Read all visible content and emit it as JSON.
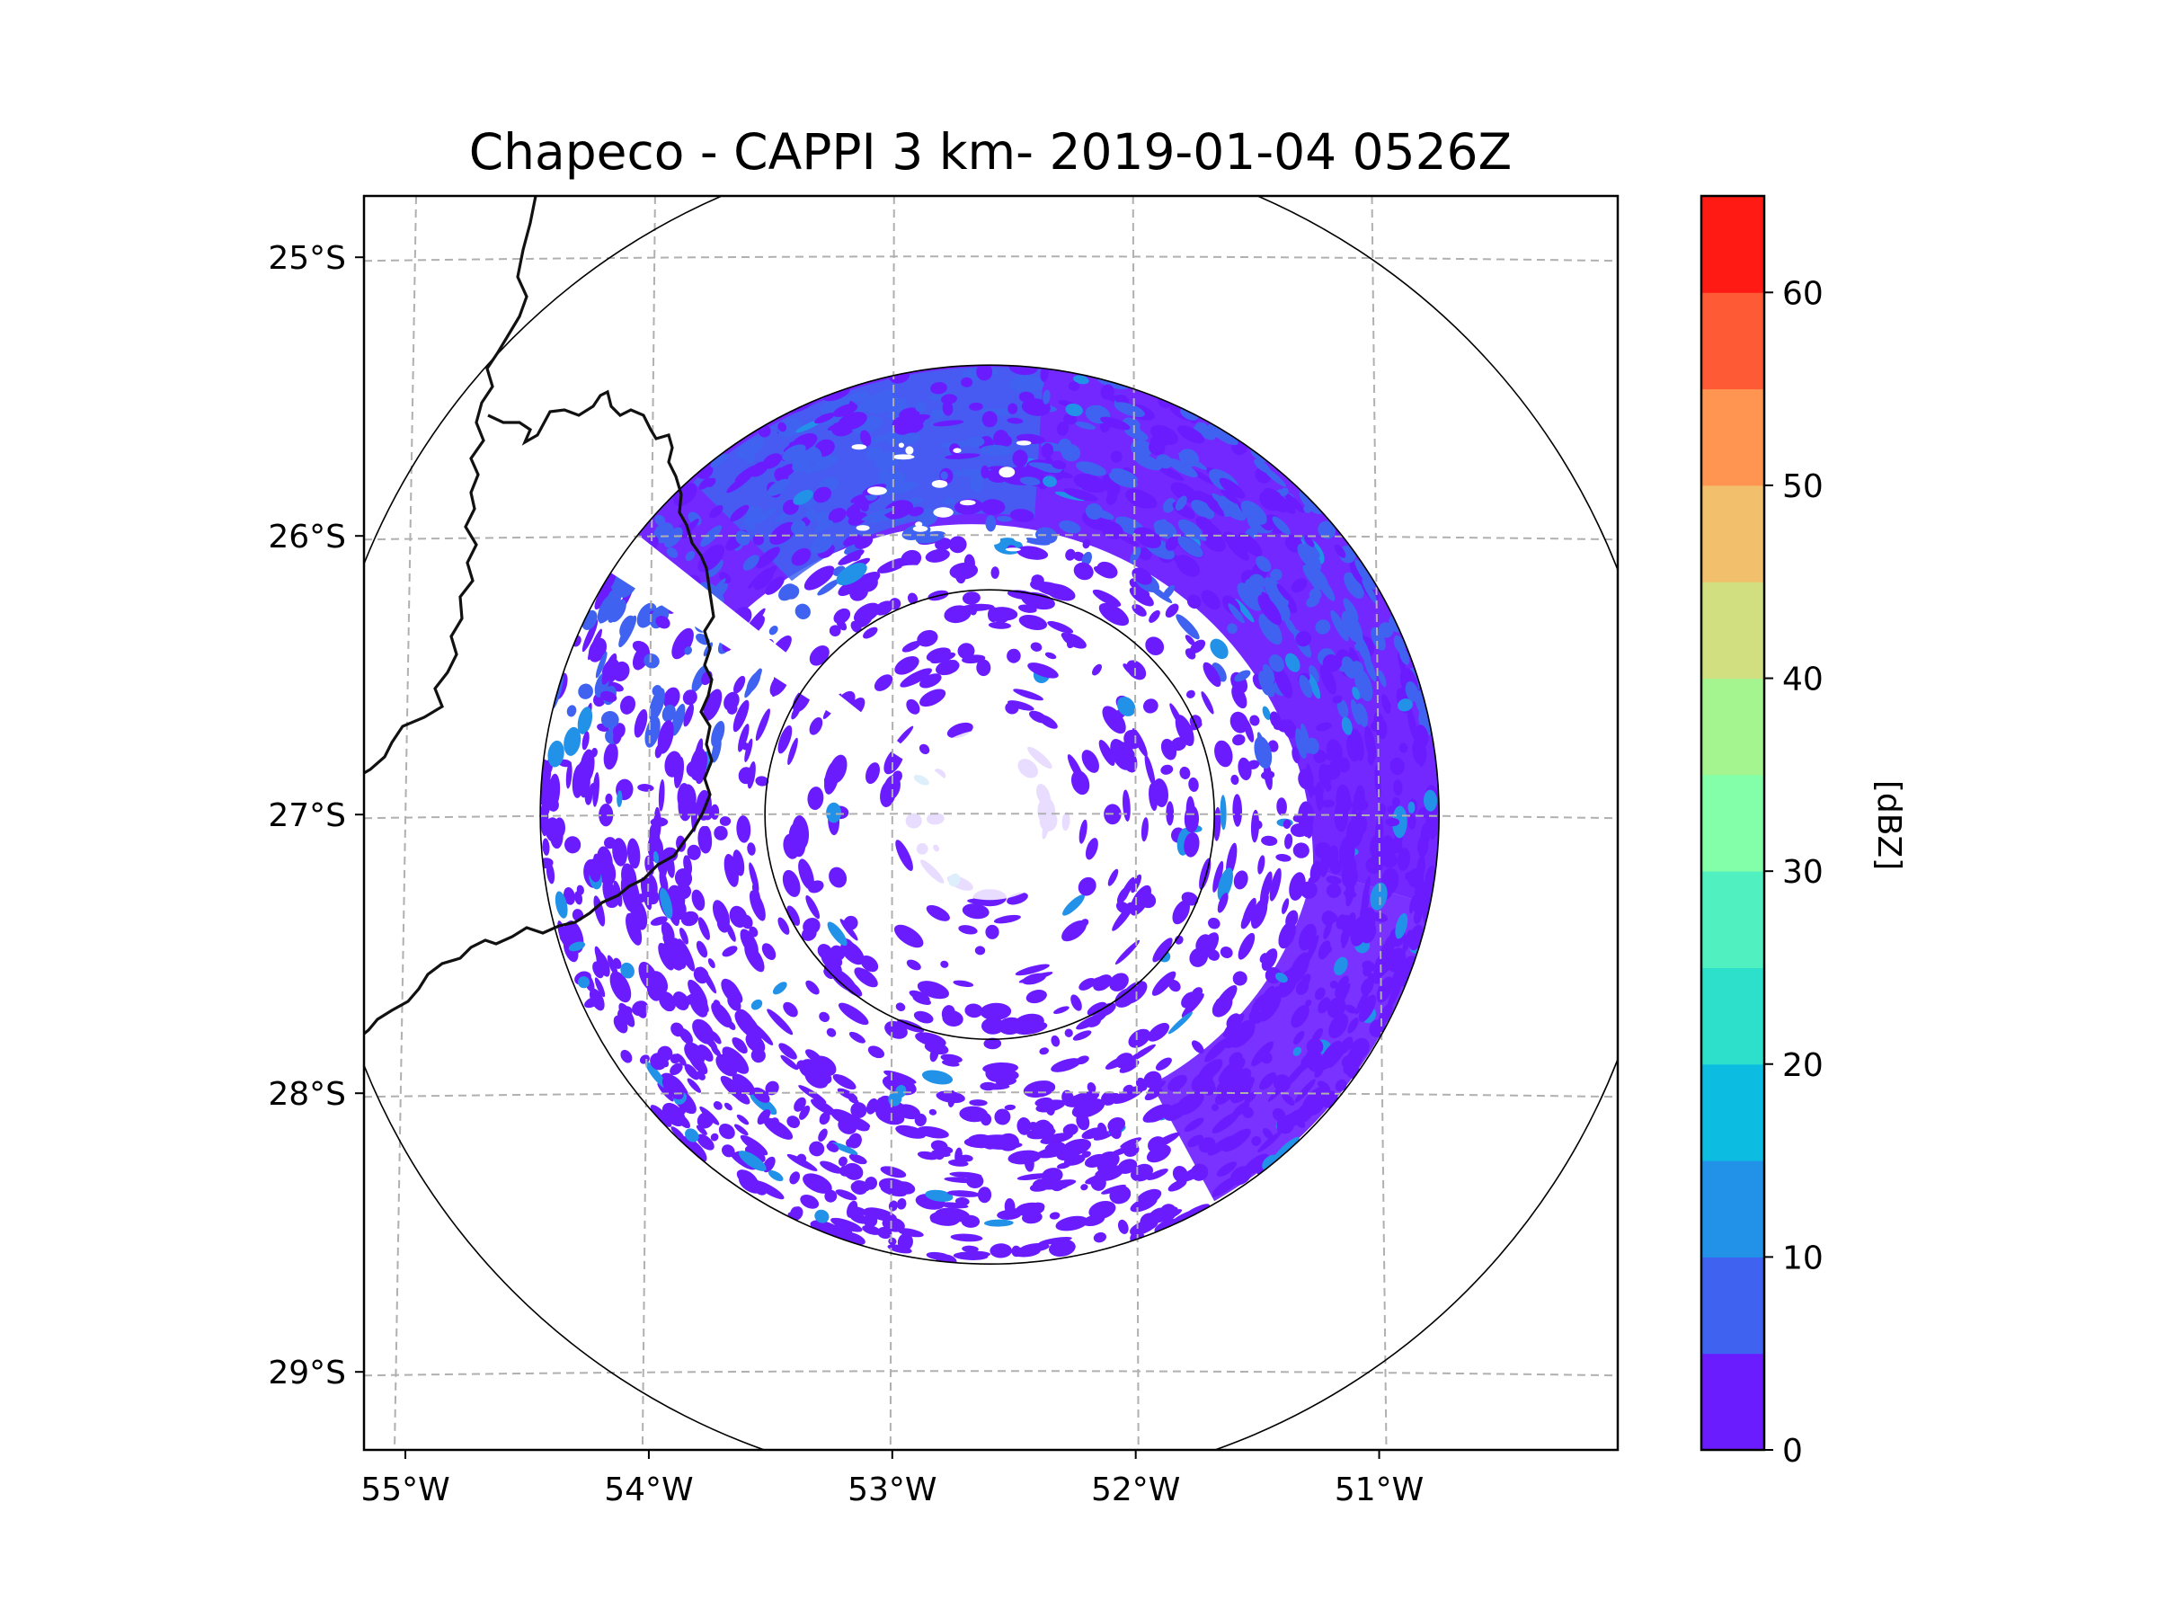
{
  "chart_data": {
    "type": "heatmap",
    "title": "Chapeco - CAPPI 3 km- 2019-01-04 0526Z",
    "xlabel": "",
    "ylabel": "",
    "x_tick_labels": [
      "55°W",
      "54°W",
      "53°W",
      "52°W",
      "51°W"
    ],
    "y_tick_labels": [
      "25°S",
      "26°S",
      "27°S",
      "28°S",
      "29°S"
    ],
    "x_ticks": [
      -55,
      -54,
      -53,
      -52,
      -51
    ],
    "y_ticks": [
      -25,
      -26,
      -27,
      -28,
      -29
    ],
    "xlim": [
      -55.17,
      -50.02
    ],
    "ylim": [
      -29.28,
      -24.78
    ],
    "grid": true,
    "radar_center": {
      "lon": -52.6,
      "lat": -27.0
    },
    "range_rings_km": [
      100,
      200,
      300
    ],
    "colorbar": {
      "label": "[dBZ]",
      "ticks": [
        0,
        10,
        20,
        30,
        40,
        50,
        60
      ],
      "tick_labels": [
        "0",
        "10",
        "20",
        "30",
        "40",
        "50",
        "60"
      ],
      "range": [
        0,
        65
      ],
      "bounds": [
        0,
        5,
        10,
        15,
        20,
        25,
        30,
        35,
        40,
        45,
        50,
        55,
        60,
        65
      ],
      "colors": [
        "#6a1cff",
        "#3f63f0",
        "#2192e8",
        "#0dbde1",
        "#2de0cc",
        "#50f0c0",
        "#82ffa8",
        "#a4f590",
        "#d1df80",
        "#f2c06c",
        "#ff9550",
        "#ff5a36",
        "#ff1a14"
      ]
    },
    "field_summary": "Reflectivity mostly 0-10 dBZ within 200 km radius; 5-10 dBZ dominant in northern sector; speckled 0-5 dBZ echoes in southern and western sectors; sparse near radar"
  },
  "colors": {
    "axes": "#000000",
    "grid": "#b0b0b0",
    "border": "#111111",
    "low_echo": "#6a1cff",
    "mid_echo": "#3f63f0"
  }
}
